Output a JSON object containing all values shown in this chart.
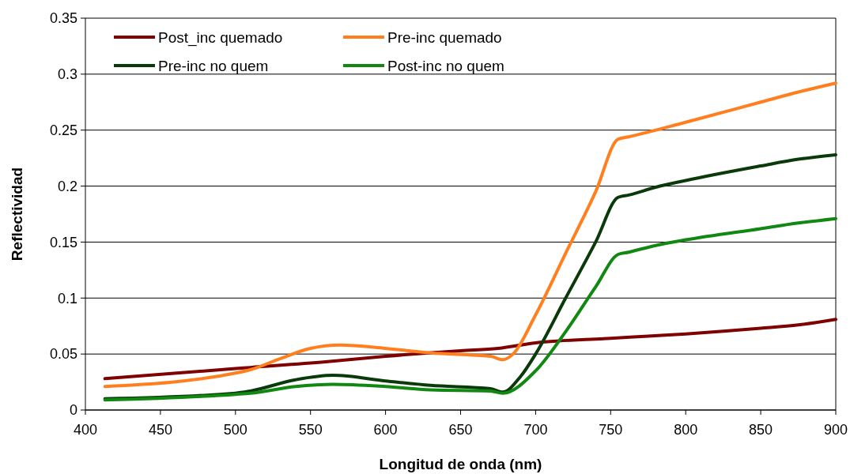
{
  "chart_data": {
    "type": "line",
    "xlabel": "Longitud de onda (nm)",
    "ylabel": "Reflectividad",
    "xlim": [
      400,
      900
    ],
    "ylim": [
      0,
      0.35
    ],
    "xticks": [
      400,
      450,
      500,
      550,
      600,
      650,
      700,
      750,
      800,
      850,
      900
    ],
    "yticks": [
      0,
      0.05,
      0.1,
      0.15,
      0.2,
      0.25,
      0.3,
      0.35
    ],
    "grid": "y",
    "legend": "top left",
    "marker": "none",
    "line_style": "solid",
    "series": [
      {
        "name": "Post_inc quemado",
        "color": "#7f0000",
        "x": [
          413,
          500,
          510,
          560,
          600,
          650,
          675,
          700,
          750,
          775,
          800,
          850,
          875,
          900
        ],
        "values": [
          0.028,
          0.037,
          0.038,
          0.043,
          0.048,
          0.053,
          0.055,
          0.06,
          0.064,
          0.066,
          0.068,
          0.073,
          0.076,
          0.081
        ]
      },
      {
        "name": "Pre-inc quemado",
        "color": "#ff7f1f",
        "x": [
          413,
          500,
          510,
          530,
          550,
          570,
          600,
          630,
          670,
          678,
          685,
          700,
          720,
          740,
          755,
          762,
          800,
          850,
          875,
          900
        ],
        "values": [
          0.021,
          0.033,
          0.036,
          0.046,
          0.055,
          0.058,
          0.055,
          0.051,
          0.048,
          0.045,
          0.05,
          0.085,
          0.14,
          0.195,
          0.242,
          0.244,
          0.257,
          0.275,
          0.284,
          0.292
        ]
      },
      {
        "name": "Pre-inc no quem",
        "color": "#0a3a0a",
        "x": [
          413,
          500,
          510,
          540,
          565,
          600,
          630,
          670,
          678,
          690,
          700,
          720,
          740,
          755,
          762,
          780,
          800,
          850,
          875,
          900
        ],
        "values": [
          0.01,
          0.015,
          0.017,
          0.027,
          0.031,
          0.026,
          0.022,
          0.019,
          0.016,
          0.03,
          0.05,
          0.1,
          0.15,
          0.19,
          0.192,
          0.199,
          0.205,
          0.218,
          0.224,
          0.228
        ]
      },
      {
        "name": "Post-inc no quem",
        "color": "#118811",
        "x": [
          413,
          500,
          510,
          540,
          565,
          600,
          630,
          670,
          678,
          700,
          720,
          740,
          755,
          762,
          780,
          800,
          850,
          875,
          900
        ],
        "values": [
          0.009,
          0.014,
          0.015,
          0.021,
          0.023,
          0.021,
          0.018,
          0.017,
          0.015,
          0.035,
          0.07,
          0.11,
          0.139,
          0.141,
          0.147,
          0.152,
          0.162,
          0.167,
          0.171
        ]
      }
    ]
  }
}
